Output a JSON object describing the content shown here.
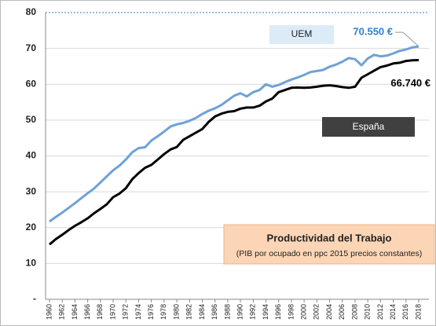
{
  "chart_data": {
    "type": "line",
    "title": "Productividad del Trabajo",
    "subtitle": "(PIB por ocupado en ppc 2015 precios constantes)",
    "x": [
      1960,
      1961,
      1962,
      1963,
      1964,
      1965,
      1966,
      1967,
      1968,
      1969,
      1970,
      1971,
      1972,
      1973,
      1974,
      1975,
      1976,
      1977,
      1978,
      1979,
      1980,
      1981,
      1982,
      1983,
      1984,
      1985,
      1986,
      1987,
      1988,
      1989,
      1990,
      1991,
      1992,
      1993,
      1994,
      1995,
      1996,
      1997,
      1998,
      1999,
      2000,
      2001,
      2002,
      2003,
      2004,
      2005,
      2006,
      2007,
      2008,
      2009,
      2010,
      2011,
      2012,
      2013,
      2014,
      2015,
      2016,
      2017,
      2018
    ],
    "xlim": [
      1960,
      2018
    ],
    "xticks": [
      1960,
      1962,
      1964,
      1966,
      1968,
      1970,
      1972,
      1974,
      1976,
      1978,
      1980,
      1982,
      1984,
      1986,
      1988,
      1990,
      1992,
      1994,
      1996,
      1998,
      2000,
      2002,
      2004,
      2006,
      2008,
      2010,
      2012,
      2014,
      2016,
      2018
    ],
    "ylim": [
      0,
      80
    ],
    "yticks": [
      {
        "value": 0,
        "label": "-"
      },
      10,
      20,
      30,
      40,
      50,
      60,
      70,
      80
    ],
    "grid": true,
    "series": [
      {
        "name": "UEM",
        "color": "#6fa1d8",
        "values": [
          21.7,
          23.0,
          24.2,
          25.5,
          26.8,
          28.2,
          29.6,
          30.9,
          32.6,
          34.3,
          36.0,
          37.3,
          39.0,
          41.0,
          42.2,
          42.4,
          44.3,
          45.5,
          46.8,
          48.2,
          48.8,
          49.2,
          49.8,
          50.6,
          51.7,
          52.6,
          53.3,
          54.2,
          55.5,
          56.8,
          57.5,
          56.6,
          57.8,
          58.4,
          60.0,
          59.3,
          59.8,
          60.6,
          61.3,
          61.9,
          62.6,
          63.4,
          63.7,
          64.0,
          64.9,
          65.5,
          66.3,
          67.3,
          67.0,
          65.3,
          67.2,
          68.2,
          67.8,
          68.0,
          68.6,
          69.3,
          69.7,
          70.3,
          70.55
        ],
        "value_labels": [
          null,
          null,
          null,
          null,
          null,
          null,
          null,
          null,
          null,
          null,
          null,
          null,
          null,
          null,
          null,
          null,
          null,
          null,
          null,
          null,
          null,
          null,
          null,
          null,
          null,
          null,
          null,
          null,
          null,
          null,
          null,
          null,
          null,
          null,
          null,
          null,
          null,
          null,
          null,
          null,
          null,
          null,
          null,
          null,
          null,
          null,
          null,
          null,
          null,
          null,
          null,
          null,
          null,
          null,
          null,
          null,
          null,
          null,
          "70.550 €"
        ]
      },
      {
        "name": "España",
        "color": "#000000",
        "values": [
          15.3,
          16.8,
          18.0,
          19.3,
          20.5,
          21.5,
          22.6,
          24.0,
          25.2,
          26.5,
          28.5,
          29.5,
          31.0,
          33.5,
          35.2,
          36.7,
          37.5,
          39.0,
          40.5,
          41.8,
          42.5,
          44.5,
          45.5,
          46.5,
          47.5,
          49.5,
          51.0,
          51.8,
          52.3,
          52.5,
          53.2,
          53.5,
          53.5,
          54.0,
          55.2,
          56.0,
          57.8,
          58.4,
          59.0,
          59.1,
          59.0,
          59.1,
          59.3,
          59.6,
          59.7,
          59.5,
          59.2,
          59.0,
          59.3,
          61.8,
          62.8,
          63.8,
          64.8,
          65.2,
          65.8,
          66.0,
          66.5,
          66.7,
          66.74
        ],
        "value_labels": [
          null,
          null,
          null,
          null,
          null,
          null,
          null,
          null,
          null,
          null,
          null,
          null,
          null,
          null,
          null,
          null,
          null,
          null,
          null,
          null,
          null,
          null,
          null,
          null,
          null,
          null,
          null,
          null,
          null,
          null,
          null,
          null,
          null,
          null,
          null,
          null,
          null,
          null,
          null,
          null,
          null,
          null,
          null,
          null,
          null,
          null,
          null,
          null,
          null,
          null,
          null,
          null,
          null,
          null,
          null,
          null,
          null,
          null,
          "66.740 €"
        ]
      }
    ]
  }
}
